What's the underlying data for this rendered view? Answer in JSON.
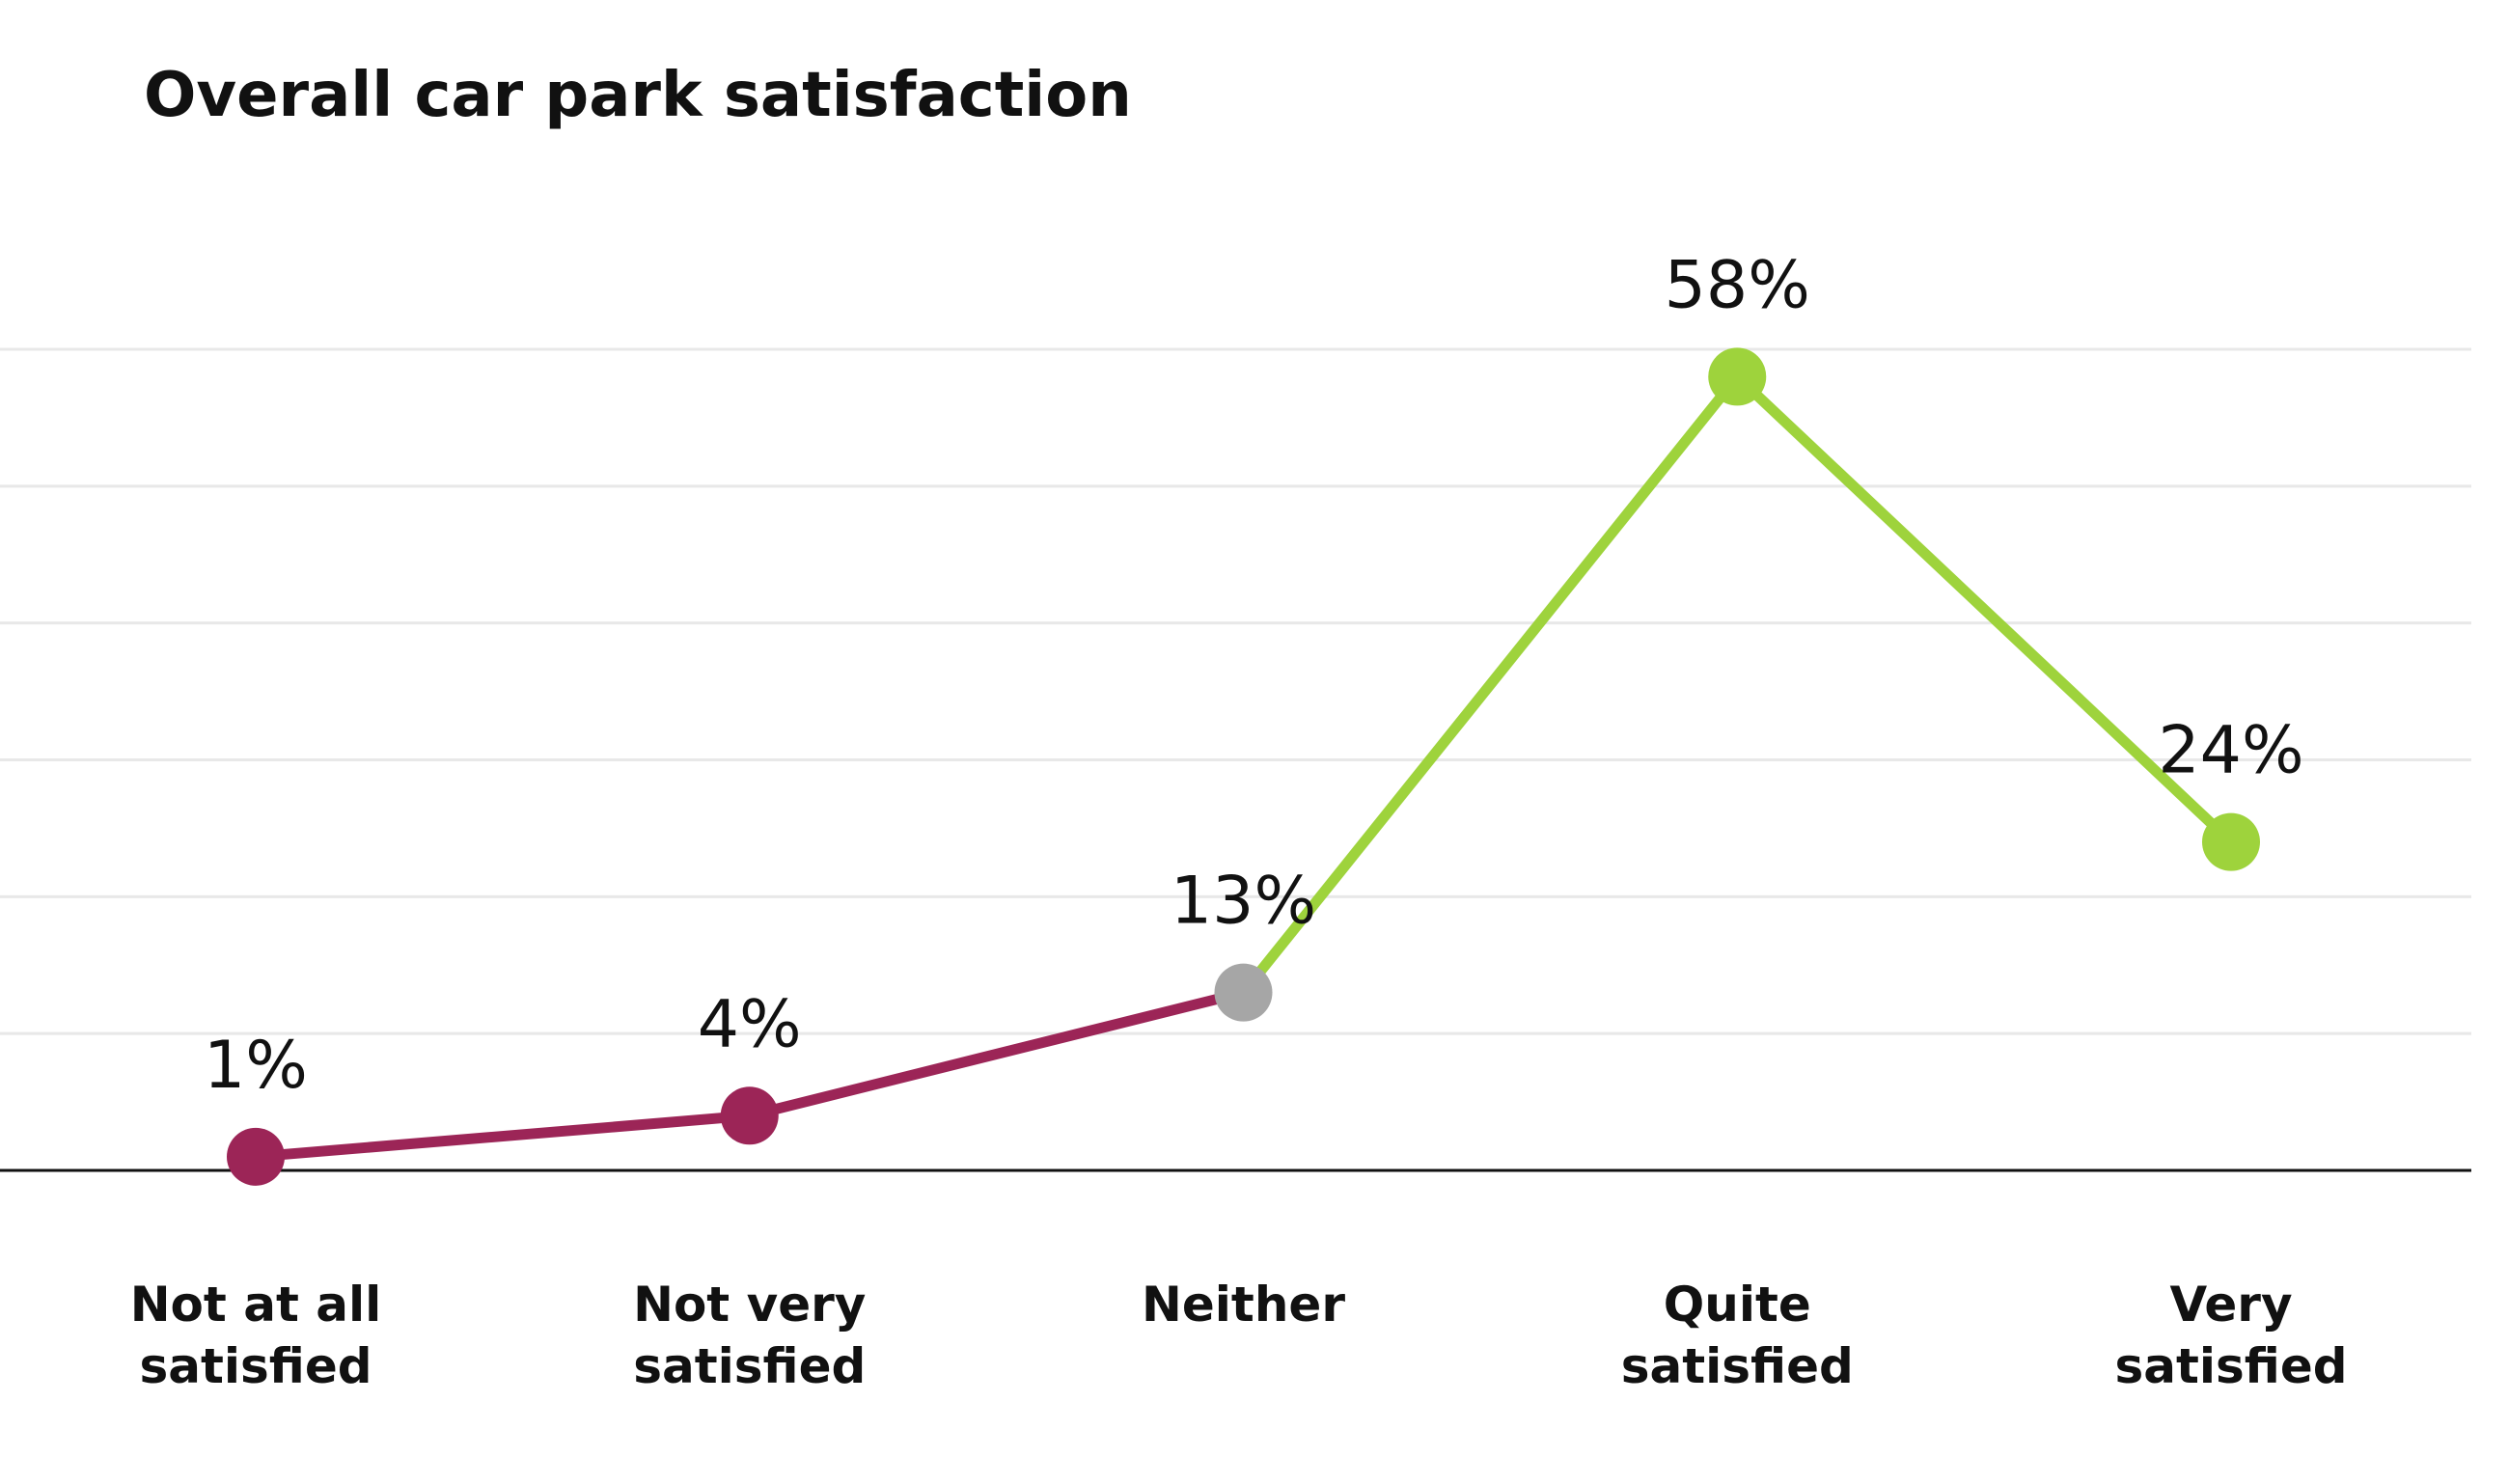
{
  "chart_data": {
    "type": "line",
    "title": "Overall car park satisfaction",
    "categories": [
      "Not at all satisfied",
      "Not very satisfied",
      "Neither",
      "Quite satisfied",
      "Very satisfied"
    ],
    "values": [
      1,
      4,
      13,
      58,
      24
    ],
    "value_labels": [
      "1%",
      "4%",
      "13%",
      "58%",
      "24%"
    ],
    "point_colors": [
      "#9c2557",
      "#9c2557",
      "#a6a6a6",
      "#9ed33c",
      "#9ed33c"
    ],
    "segment_colors": [
      "#9c2557",
      "#9c2557",
      "#9ed33c",
      "#9ed33c"
    ],
    "ylim": [
      0,
      60
    ],
    "yticks": [
      0,
      10,
      20,
      30,
      40,
      50,
      60
    ],
    "grid": true
  }
}
